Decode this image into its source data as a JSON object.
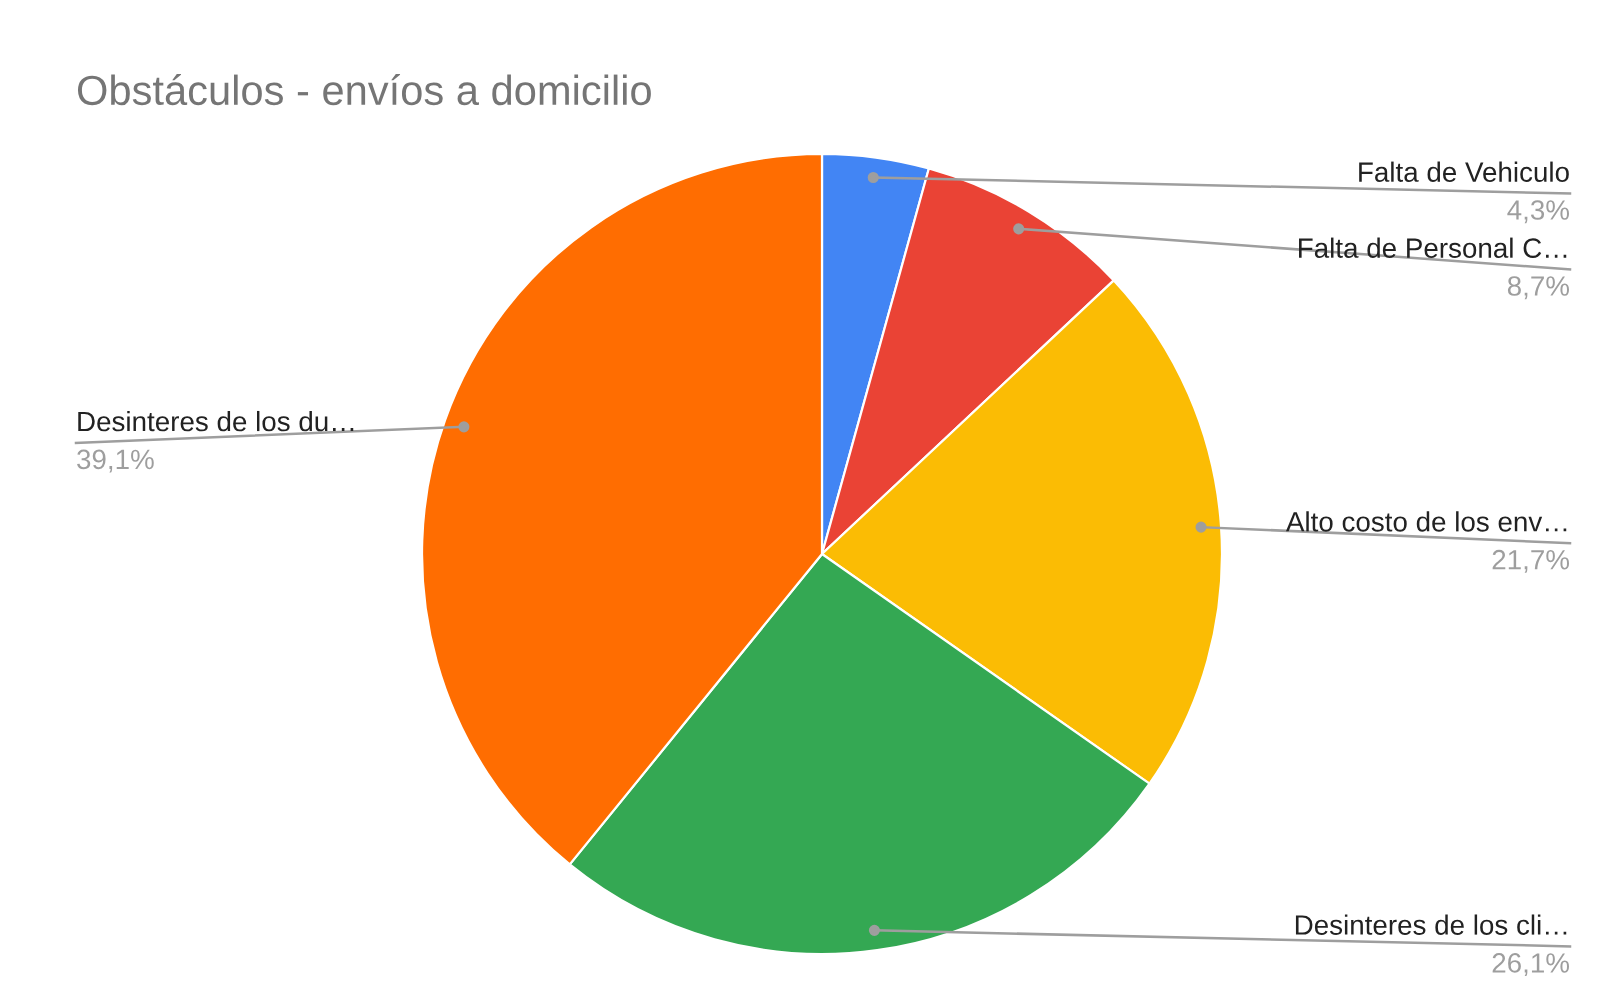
{
  "chart_data": {
    "type": "pie",
    "title": "Obstáculos - envíos a domicilio",
    "categories": [
      "Falta de Vehiculo",
      "Falta de Personal C…",
      "Alto costo de los env…",
      "Desinteres de los cli…",
      "Desinteres de los du…"
    ],
    "values": [
      4.3,
      8.7,
      21.7,
      26.1,
      39.1
    ],
    "value_labels": [
      "4,3%",
      "8,7%",
      "21,7%",
      "26,1%",
      "39,1%"
    ],
    "colors": [
      "#4285f4",
      "#ea4335",
      "#fbbc04",
      "#34a853",
      "#ff6d01"
    ],
    "legend": false
  }
}
